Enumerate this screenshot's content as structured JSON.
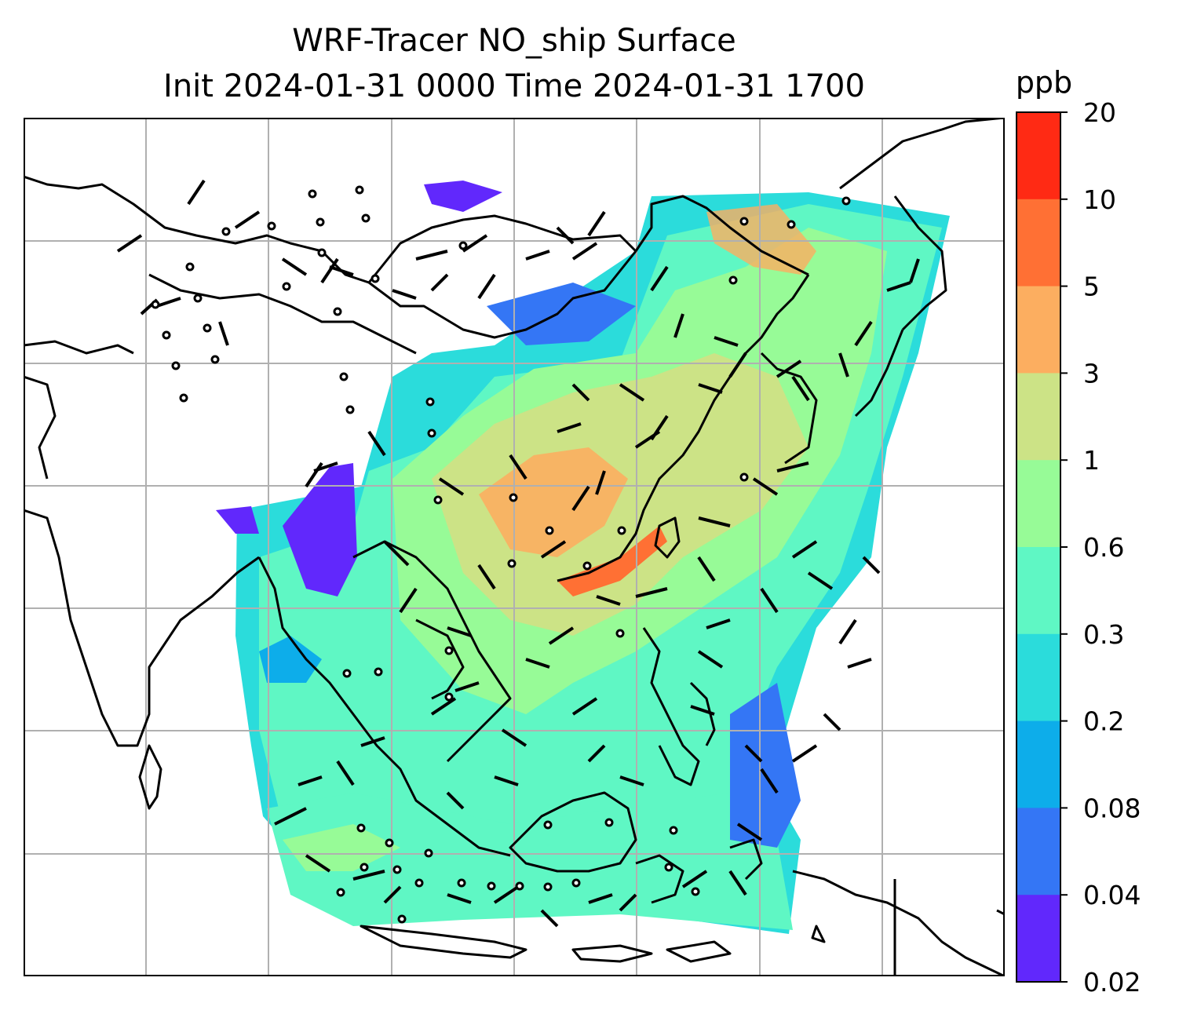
{
  "title": {
    "line1": "WRF-Tracer NO_ship Surface",
    "line2": "Init 2024-01-31 0000 Time 2024-01-31 1700"
  },
  "colorbar": {
    "unit": "ppb",
    "ticks": [
      "20",
      "10",
      "5",
      "3",
      "1",
      "0.6",
      "0.3",
      "0.2",
      "0.08",
      "0.04",
      "0.02"
    ],
    "colors": [
      "#ff2a14",
      "#ff7034",
      "#fcae60",
      "#cce386",
      "#97fb97",
      "#5ff7c4",
      "#2bdcdb",
      "#0dadea",
      "#3476f5",
      "#6128fc"
    ]
  },
  "map": {
    "variable": "NO_ship",
    "level": "Surface",
    "field_color_classes": [
      "0.02-0.04",
      "0.04-0.08",
      "0.08-0.2",
      "0.2-0.3",
      "0.3-0.6",
      "0.6-1",
      "1-3",
      "3-5",
      "5-10",
      "10-20"
    ],
    "overlay": "wind barbs",
    "gridlines": true,
    "coastlines": true,
    "country_borders": true
  }
}
